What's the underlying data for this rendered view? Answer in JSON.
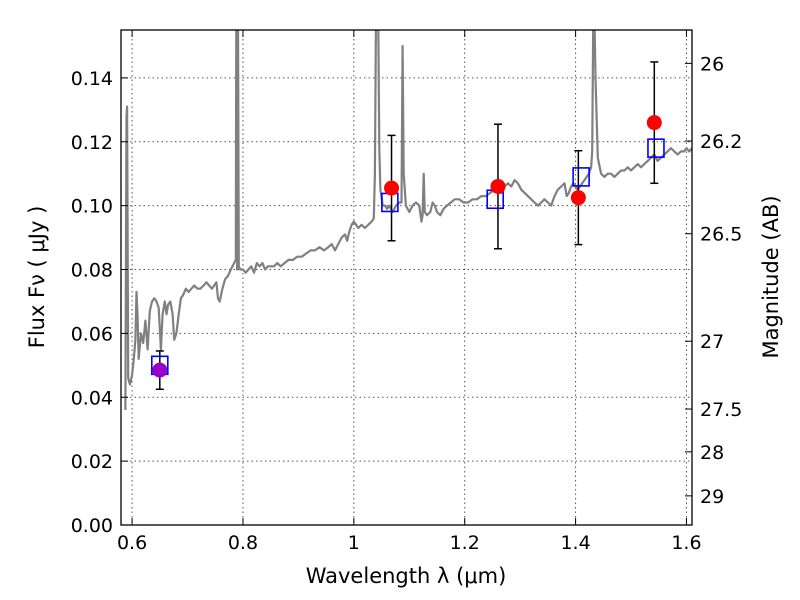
{
  "chart_data": {
    "type": "scatter",
    "xlabel": "Wavelength  λ (μm)",
    "ylabel": "Flux  Fν  ( μJy )",
    "y2label": "Magnitude (AB)",
    "xlim": [
      0.58,
      1.61
    ],
    "ylim": [
      0.0,
      0.155
    ],
    "grid": true,
    "x_ticks": [
      {
        "value": 0.6,
        "label": "0.6"
      },
      {
        "value": 0.8,
        "label": "0.8"
      },
      {
        "value": 1.0,
        "label": "1"
      },
      {
        "value": 1.2,
        "label": "1.2"
      },
      {
        "value": 1.4,
        "label": "1.4"
      },
      {
        "value": 1.6,
        "label": "1.6"
      }
    ],
    "y_ticks": [
      {
        "value": 0.0,
        "label": "0.00"
      },
      {
        "value": 0.02,
        "label": "0.02"
      },
      {
        "value": 0.04,
        "label": "0.04"
      },
      {
        "value": 0.06,
        "label": "0.06"
      },
      {
        "value": 0.08,
        "label": "0.08"
      },
      {
        "value": 0.1,
        "label": "0.10"
      },
      {
        "value": 0.12,
        "label": "0.12"
      },
      {
        "value": 0.14,
        "label": "0.14"
      }
    ],
    "y2_ticks": [
      {
        "label": "26",
        "mag": 26.0
      },
      {
        "label": "26.2",
        "mag": 26.2
      },
      {
        "label": "26.5",
        "mag": 26.5
      },
      {
        "label": "27",
        "mag": 27.0
      },
      {
        "label": "27.5",
        "mag": 27.5
      },
      {
        "label": "28",
        "mag": 28.0
      },
      {
        "label": "29",
        "mag": 29.0
      }
    ],
    "spectrum": {
      "color": "#808080",
      "points": [
        [
          0.588,
          0.036
        ],
        [
          0.59,
          0.128
        ],
        [
          0.591,
          0.131
        ],
        [
          0.593,
          0.046
        ],
        [
          0.596,
          0.044
        ],
        [
          0.6,
          0.047
        ],
        [
          0.603,
          0.052
        ],
        [
          0.606,
          0.058
        ],
        [
          0.608,
          0.073
        ],
        [
          0.61,
          0.065
        ],
        [
          0.612,
          0.052
        ],
        [
          0.616,
          0.06
        ],
        [
          0.62,
          0.057
        ],
        [
          0.624,
          0.064
        ],
        [
          0.628,
          0.055
        ],
        [
          0.632,
          0.067
        ],
        [
          0.636,
          0.07
        ],
        [
          0.64,
          0.071
        ],
        [
          0.644,
          0.07
        ],
        [
          0.648,
          0.068
        ],
        [
          0.652,
          0.055
        ],
        [
          0.655,
          0.066
        ],
        [
          0.659,
          0.07
        ],
        [
          0.662,
          0.066
        ],
        [
          0.665,
          0.069
        ],
        [
          0.669,
          0.07
        ],
        [
          0.673,
          0.066
        ],
        [
          0.676,
          0.058
        ],
        [
          0.68,
          0.06
        ],
        [
          0.684,
          0.066
        ],
        [
          0.688,
          0.071
        ],
        [
          0.692,
          0.072
        ],
        [
          0.697,
          0.074
        ],
        [
          0.702,
          0.073
        ],
        [
          0.707,
          0.074
        ],
        [
          0.712,
          0.075
        ],
        [
          0.718,
          0.074
        ],
        [
          0.723,
          0.074
        ],
        [
          0.729,
          0.075
        ],
        [
          0.734,
          0.076
        ],
        [
          0.739,
          0.075
        ],
        [
          0.744,
          0.074
        ],
        [
          0.748,
          0.075
        ],
        [
          0.752,
          0.076
        ],
        [
          0.755,
          0.071
        ],
        [
          0.758,
          0.07
        ],
        [
          0.763,
          0.074
        ],
        [
          0.768,
          0.077
        ],
        [
          0.773,
          0.078
        ],
        [
          0.778,
          0.08
        ],
        [
          0.784,
          0.082
        ],
        [
          0.787,
          0.083
        ],
        [
          0.788,
          0.16
        ],
        [
          0.7895,
          0.08
        ],
        [
          0.79,
          0.081
        ],
        [
          0.791,
          0.16
        ],
        [
          0.7925,
          0.081
        ],
        [
          0.795,
          0.08
        ],
        [
          0.8,
          0.08
        ],
        [
          0.805,
          0.079
        ],
        [
          0.81,
          0.08
        ],
        [
          0.815,
          0.081
        ],
        [
          0.82,
          0.079
        ],
        [
          0.825,
          0.082
        ],
        [
          0.83,
          0.081
        ],
        [
          0.835,
          0.082
        ],
        [
          0.84,
          0.08
        ],
        [
          0.845,
          0.081
        ],
        [
          0.85,
          0.081
        ],
        [
          0.856,
          0.081
        ],
        [
          0.862,
          0.082
        ],
        [
          0.868,
          0.081
        ],
        [
          0.875,
          0.082
        ],
        [
          0.882,
          0.083
        ],
        [
          0.89,
          0.083
        ],
        [
          0.898,
          0.084
        ],
        [
          0.906,
          0.084
        ],
        [
          0.914,
          0.085
        ],
        [
          0.922,
          0.086
        ],
        [
          0.93,
          0.086
        ],
        [
          0.938,
          0.087
        ],
        [
          0.946,
          0.086
        ],
        [
          0.954,
          0.087
        ],
        [
          0.96,
          0.088
        ],
        [
          0.966,
          0.086
        ],
        [
          0.972,
          0.088
        ],
        [
          0.978,
          0.09
        ],
        [
          0.984,
          0.091
        ],
        [
          0.988,
          0.089
        ],
        [
          0.992,
          0.092
        ],
        [
          0.996,
          0.094
        ],
        [
          1.0,
          0.095
        ],
        [
          1.004,
          0.094
        ],
        [
          1.008,
          0.093
        ],
        [
          1.014,
          0.094
        ],
        [
          1.02,
          0.093
        ],
        [
          1.026,
          0.094
        ],
        [
          1.032,
          0.095
        ],
        [
          1.036,
          0.096
        ],
        [
          1.038,
          0.11
        ],
        [
          1.04,
          0.16
        ],
        [
          1.042,
          0.16
        ],
        [
          1.044,
          0.16
        ],
        [
          1.046,
          0.118
        ],
        [
          1.048,
          0.105
        ],
        [
          1.052,
          0.1
        ],
        [
          1.056,
          0.1
        ],
        [
          1.06,
          0.099
        ],
        [
          1.064,
          0.1
        ],
        [
          1.07,
          0.098
        ],
        [
          1.076,
          0.1
        ],
        [
          1.082,
          0.101
        ],
        [
          1.086,
          0.101
        ],
        [
          1.088,
          0.15
        ],
        [
          1.09,
          0.11
        ],
        [
          1.094,
          0.1
        ],
        [
          1.1,
          0.098
        ],
        [
          1.106,
          0.1
        ],
        [
          1.112,
          0.101
        ],
        [
          1.118,
          0.1
        ],
        [
          1.122,
          0.095
        ],
        [
          1.124,
          0.097
        ],
        [
          1.126,
          0.11
        ],
        [
          1.128,
          0.098
        ],
        [
          1.132,
          0.097
        ],
        [
          1.138,
          0.098
        ],
        [
          1.142,
          0.101
        ],
        [
          1.146,
          0.1
        ],
        [
          1.15,
          0.098
        ],
        [
          1.156,
          0.097
        ],
        [
          1.162,
          0.099
        ],
        [
          1.168,
          0.1
        ],
        [
          1.175,
          0.101
        ],
        [
          1.182,
          0.102
        ],
        [
          1.19,
          0.102
        ],
        [
          1.198,
          0.101
        ],
        [
          1.206,
          0.101
        ],
        [
          1.214,
          0.102
        ],
        [
          1.222,
          0.102
        ],
        [
          1.23,
          0.103
        ],
        [
          1.238,
          0.103
        ],
        [
          1.246,
          0.104
        ],
        [
          1.254,
          0.105
        ],
        [
          1.26,
          0.104
        ],
        [
          1.266,
          0.104
        ],
        [
          1.272,
          0.106
        ],
        [
          1.278,
          0.107
        ],
        [
          1.284,
          0.106
        ],
        [
          1.29,
          0.108
        ],
        [
          1.296,
          0.107
        ],
        [
          1.302,
          0.105
        ],
        [
          1.308,
          0.104
        ],
        [
          1.314,
          0.103
        ],
        [
          1.32,
          0.102
        ],
        [
          1.326,
          0.101
        ],
        [
          1.332,
          0.1
        ],
        [
          1.338,
          0.101
        ],
        [
          1.344,
          0.102
        ],
        [
          1.35,
          0.101
        ],
        [
          1.356,
          0.1
        ],
        [
          1.362,
          0.103
        ],
        [
          1.368,
          0.105
        ],
        [
          1.374,
          0.106
        ],
        [
          1.38,
          0.107
        ],
        [
          1.384,
          0.103
        ],
        [
          1.388,
          0.104
        ],
        [
          1.392,
          0.106
        ],
        [
          1.396,
          0.107
        ],
        [
          1.4,
          0.106
        ],
        [
          1.404,
          0.105
        ],
        [
          1.408,
          0.106
        ],
        [
          1.412,
          0.107
        ],
        [
          1.416,
          0.108
        ],
        [
          1.42,
          0.109
        ],
        [
          1.424,
          0.11
        ],
        [
          1.428,
          0.112
        ],
        [
          1.43,
          0.117
        ],
        [
          1.432,
          0.16
        ],
        [
          1.434,
          0.16
        ],
        [
          1.436,
          0.14
        ],
        [
          1.44,
          0.115
        ],
        [
          1.446,
          0.11
        ],
        [
          1.452,
          0.109
        ],
        [
          1.458,
          0.11
        ],
        [
          1.464,
          0.11
        ],
        [
          1.47,
          0.109
        ],
        [
          1.476,
          0.11
        ],
        [
          1.482,
          0.111
        ],
        [
          1.488,
          0.111
        ],
        [
          1.494,
          0.112
        ],
        [
          1.5,
          0.111
        ],
        [
          1.506,
          0.112
        ],
        [
          1.512,
          0.113
        ],
        [
          1.518,
          0.112
        ],
        [
          1.524,
          0.113
        ],
        [
          1.53,
          0.114
        ],
        [
          1.536,
          0.115
        ],
        [
          1.542,
          0.116
        ],
        [
          1.548,
          0.114
        ],
        [
          1.554,
          0.115
        ],
        [
          1.56,
          0.116
        ],
        [
          1.566,
          0.117
        ],
        [
          1.572,
          0.118
        ],
        [
          1.578,
          0.117
        ],
        [
          1.584,
          0.116
        ],
        [
          1.59,
          0.117
        ],
        [
          1.596,
          0.117
        ],
        [
          1.6,
          0.118
        ],
        [
          1.605,
          0.117
        ],
        [
          1.61,
          0.118
        ]
      ]
    },
    "model_points": {
      "color": "#0000ff",
      "marker": "open-square",
      "points": [
        {
          "x": 0.65,
          "y": 0.05
        },
        {
          "x": 1.065,
          "y": 0.101
        },
        {
          "x": 1.255,
          "y": 0.102
        },
        {
          "x": 1.41,
          "y": 0.109
        },
        {
          "x": 1.545,
          "y": 0.118
        }
      ]
    },
    "observed_points": {
      "color": "#ff0000",
      "marker": "filled-circle",
      "points": [
        {
          "x": 0.65,
          "y": 0.0485,
          "yerr": 0.006,
          "color": "#9a00c8"
        },
        {
          "x": 1.068,
          "y": 0.1055,
          "yerr": 0.0165
        },
        {
          "x": 1.26,
          "y": 0.106,
          "yerr": 0.0195
        },
        {
          "x": 1.405,
          "y": 0.1025,
          "yerr": 0.0147
        },
        {
          "x": 1.542,
          "y": 0.126,
          "yerr": 0.019
        }
      ]
    }
  }
}
